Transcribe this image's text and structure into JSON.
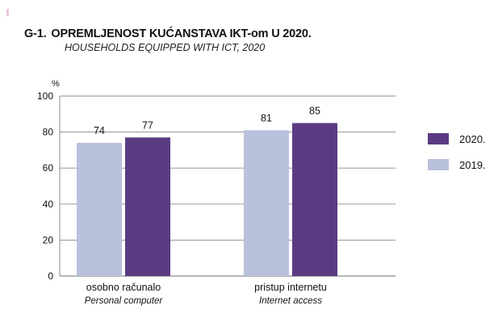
{
  "header": {
    "number": "G-1.",
    "title": "OPREMLJENOST KUĆANSTAVA IKT-om U 2020.",
    "subtitle": "HOUSEHOLDS EQUIPPED WITH ICT, 2020"
  },
  "chart_data": {
    "type": "bar",
    "unit": "%",
    "ylim": [
      0,
      100
    ],
    "yticks": [
      0,
      20,
      40,
      60,
      80,
      100
    ],
    "grid": true,
    "legend_position": "right",
    "categories": [
      {
        "label": "osobno računalo",
        "sublabel": "Personal computer"
      },
      {
        "label": "pristup internetu",
        "sublabel": "Internet access"
      }
    ],
    "series": [
      {
        "name": "2019.",
        "color": "#b9c1dd",
        "values": [
          74,
          81
        ]
      },
      {
        "name": "2020.",
        "color": "#5a3b82",
        "values": [
          77,
          85
        ]
      }
    ]
  }
}
